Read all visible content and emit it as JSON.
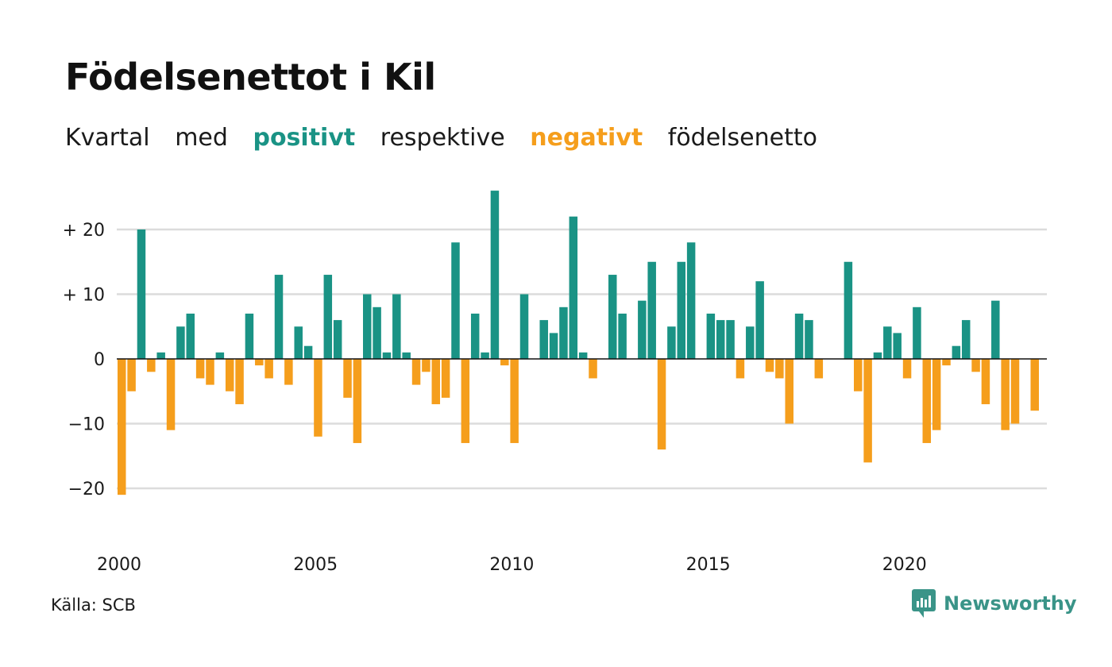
{
  "title": "Födelsenettot i Kil",
  "subtitle": {
    "part1": "Kvartal",
    "part2": "med",
    "positive": "positivt",
    "part3": "respektive",
    "negative": "negativt",
    "part4": "födelsenetto"
  },
  "source": "Källa: SCB",
  "brand": "Newsworthy",
  "colors": {
    "positive": "#1a9385",
    "negative": "#f59e1c",
    "grid": "#dcdcdc",
    "brand": "#3a9488"
  },
  "chart_data": {
    "type": "bar",
    "title": "Födelsenettot i Kil",
    "subtitle": "Kvartal med positivt respektive negativt födelsenetto",
    "x_start": 2000,
    "x_unit": "quarter",
    "ylim": [
      -25,
      28
    ],
    "grid": true,
    "yticks": [
      {
        "value": 20,
        "label": "+ 20"
      },
      {
        "value": 10,
        "label": "+ 10"
      },
      {
        "value": 0,
        "label": "0"
      },
      {
        "value": -10,
        "label": "−10"
      },
      {
        "value": -20,
        "label": "−20"
      }
    ],
    "xticks": [
      {
        "year": 2000,
        "label": "2000"
      },
      {
        "year": 2005,
        "label": "2005"
      },
      {
        "year": 2010,
        "label": "2010"
      },
      {
        "year": 2015,
        "label": "2015"
      },
      {
        "year": 2020,
        "label": "2020"
      }
    ],
    "categories": [
      "2000 Q1",
      "2000 Q2",
      "2000 Q3",
      "2000 Q4",
      "2001 Q1",
      "2001 Q2",
      "2001 Q3",
      "2001 Q4",
      "2002 Q1",
      "2002 Q2",
      "2002 Q3",
      "2002 Q4",
      "2003 Q1",
      "2003 Q2",
      "2003 Q3",
      "2003 Q4",
      "2004 Q1",
      "2004 Q2",
      "2004 Q3",
      "2004 Q4",
      "2005 Q1",
      "2005 Q2",
      "2005 Q3",
      "2005 Q4",
      "2006 Q1",
      "2006 Q2",
      "2006 Q3",
      "2006 Q4",
      "2007 Q1",
      "2007 Q2",
      "2007 Q3",
      "2007 Q4",
      "2008 Q1",
      "2008 Q2",
      "2008 Q3",
      "2008 Q4",
      "2009 Q1",
      "2009 Q2",
      "2009 Q3",
      "2009 Q4",
      "2010 Q1",
      "2010 Q2",
      "2010 Q3",
      "2010 Q4",
      "2011 Q1",
      "2011 Q2",
      "2011 Q3",
      "2011 Q4",
      "2012 Q1",
      "2012 Q2",
      "2012 Q3",
      "2012 Q4",
      "2013 Q1",
      "2013 Q2",
      "2013 Q3",
      "2013 Q4",
      "2014 Q1",
      "2014 Q2",
      "2014 Q3",
      "2014 Q4",
      "2015 Q1",
      "2015 Q2",
      "2015 Q3",
      "2015 Q4",
      "2016 Q1",
      "2016 Q2",
      "2016 Q3",
      "2016 Q4",
      "2017 Q1",
      "2017 Q2",
      "2017 Q3",
      "2017 Q4",
      "2018 Q1",
      "2018 Q2",
      "2018 Q3",
      "2018 Q4",
      "2019 Q1",
      "2019 Q2",
      "2019 Q3",
      "2019 Q4",
      "2020 Q1",
      "2020 Q2",
      "2020 Q3",
      "2020 Q4",
      "2021 Q1",
      "2021 Q2",
      "2021 Q3",
      "2021 Q4",
      "2022 Q1",
      "2022 Q2",
      "2022 Q3",
      "2022 Q4",
      "2023 Q1",
      "2023 Q2",
      "2023 Q3",
      "2023 Q4"
    ],
    "values": [
      -21,
      -5,
      20,
      -2,
      1,
      -11,
      5,
      7,
      -3,
      -4,
      1,
      -5,
      -7,
      7,
      -1,
      -3,
      13,
      -4,
      5,
      2,
      -12,
      13,
      6,
      -6,
      -13,
      10,
      8,
      1,
      10,
      1,
      -4,
      -2,
      -7,
      -6,
      18,
      -13,
      7,
      1,
      26,
      -1,
      -13,
      10,
      0,
      6,
      4,
      8,
      22,
      1,
      -3,
      0,
      13,
      7,
      0,
      9,
      15,
      -14,
      5,
      15,
      18,
      0,
      7,
      6,
      6,
      -3,
      5,
      12,
      -2,
      -3,
      -10,
      7,
      6,
      -3,
      0,
      0,
      15,
      -5,
      -16,
      1,
      5,
      4,
      -3,
      8,
      -13,
      -11,
      -1,
      2,
      6,
      -2,
      -7,
      9,
      -11,
      -10,
      0,
      -8,
      0,
      0
    ]
  }
}
